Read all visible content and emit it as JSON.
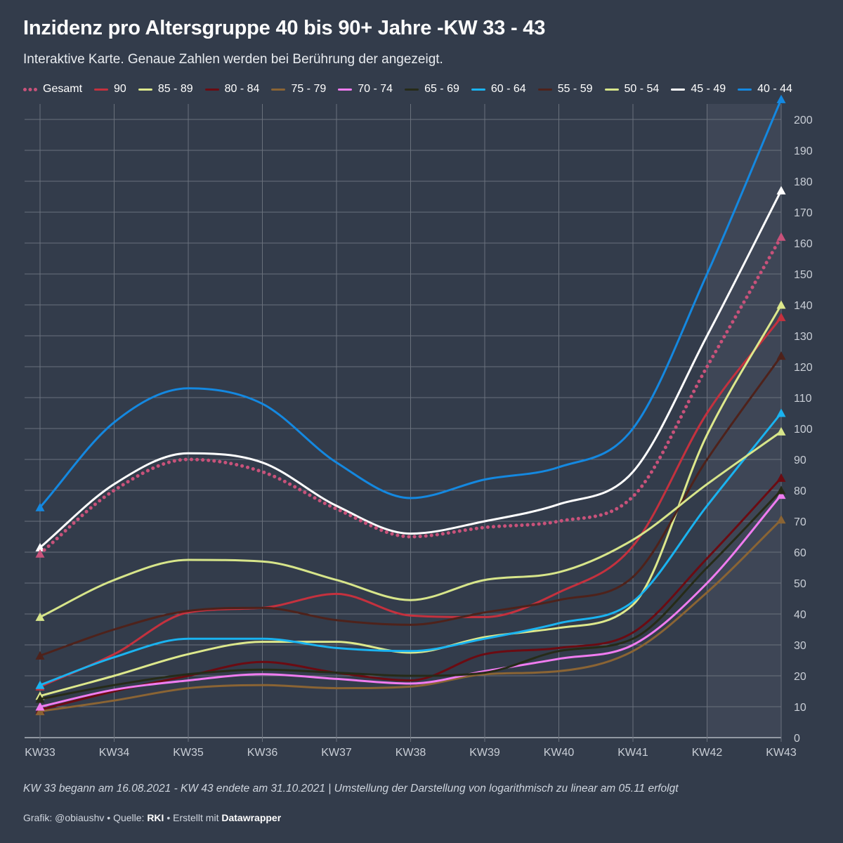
{
  "title": "Inzidenz pro Altersgruppe 40 bis 90+ Jahre -KW 33 - 43",
  "subtitle": "Interaktive Karte. Genaue Zahlen werden bei Berührung der angezeigt.",
  "note": "KW 33 begann am 16.08.2021 - KW 43 endete am 31.10.2021 | Umstellung der Darstellung von logarithmisch zu linear am 05.11 erfolgt",
  "credits": {
    "graphic_label": "Grafik: @obiaushv",
    "source_prefix": "Quelle:",
    "source": "RKI",
    "made_with_prefix": "Erstellt mit",
    "made_with": "Datawrapper"
  },
  "chart_data": {
    "type": "line",
    "title": "Inzidenz pro Altersgruppe 40 bis 90+ Jahre -KW 33 - 43",
    "x": [
      "KW33",
      "KW34",
      "KW35",
      "KW36",
      "KW37",
      "KW38",
      "KW39",
      "KW40",
      "KW41",
      "KW42",
      "KW43"
    ],
    "ylim": [
      0,
      205
    ],
    "yticks": [
      0,
      10,
      20,
      30,
      40,
      50,
      60,
      70,
      80,
      90,
      100,
      110,
      120,
      130,
      140,
      150,
      160,
      170,
      180,
      190,
      200
    ],
    "y_axis_position": "right",
    "grid": true,
    "legend_position": "top",
    "highlight_range": [
      "KW42",
      "KW43"
    ],
    "series": [
      {
        "name": "Gesamt",
        "color": "#c8527a",
        "dotted": true,
        "values": [
          59.5,
          80,
          90,
          86,
          74,
          65,
          68,
          70,
          78,
          120,
          162
        ]
      },
      {
        "name": "90",
        "color": "#c4313e",
        "values": [
          16.5,
          27,
          40.5,
          42,
          46.5,
          39.5,
          39,
          47,
          62,
          105,
          136
        ]
      },
      {
        "name": "85 - 89",
        "color": "#dde88c",
        "values": [
          13.5,
          20,
          27,
          31,
          31,
          27.5,
          32.5,
          35.5,
          43,
          98,
          140
        ]
      },
      {
        "name": "80 - 84",
        "color": "#6b0b12",
        "values": [
          9,
          15,
          20,
          24.5,
          21,
          18.5,
          27,
          29,
          34,
          58,
          84
        ]
      },
      {
        "name": "75 - 79",
        "color": "#8a6434",
        "values": [
          8.5,
          12,
          16,
          17,
          16,
          16.5,
          20.5,
          21.5,
          28,
          47,
          70.5
        ]
      },
      {
        "name": "70 - 74",
        "color": "#f07cf0",
        "values": [
          10,
          15.5,
          18.5,
          20.5,
          19,
          17.5,
          21.5,
          25.5,
          30,
          50,
          78.5
        ]
      },
      {
        "name": "65 - 69",
        "color": "#262b18",
        "values": [
          12.5,
          17,
          20.5,
          22,
          21,
          20,
          21,
          28,
          32,
          55,
          80
        ]
      },
      {
        "name": "60 - 64",
        "color": "#1ab3f0",
        "values": [
          17,
          26,
          32,
          32,
          29,
          28,
          32,
          37,
          44,
          75,
          105
        ]
      },
      {
        "name": "55 - 59",
        "color": "#4e221b",
        "values": [
          26.5,
          35,
          41,
          42,
          38,
          36.5,
          40.5,
          44.5,
          52,
          90,
          123.5
        ]
      },
      {
        "name": "50 - 54",
        "color": "#d7e58a",
        "values": [
          39,
          51,
          57.5,
          57,
          51,
          44.5,
          51,
          53.5,
          64,
          82,
          99
        ]
      },
      {
        "name": "45 - 49",
        "color": "#ffffff",
        "values": [
          61.5,
          82,
          92,
          89,
          75,
          66,
          70,
          75.5,
          86,
          130,
          177
        ]
      },
      {
        "name": "40 - 44",
        "color": "#1488e0",
        "values": [
          74.5,
          102,
          113,
          108,
          89,
          77.5,
          83.5,
          87.5,
          100,
          150,
          206.5
        ]
      }
    ]
  }
}
